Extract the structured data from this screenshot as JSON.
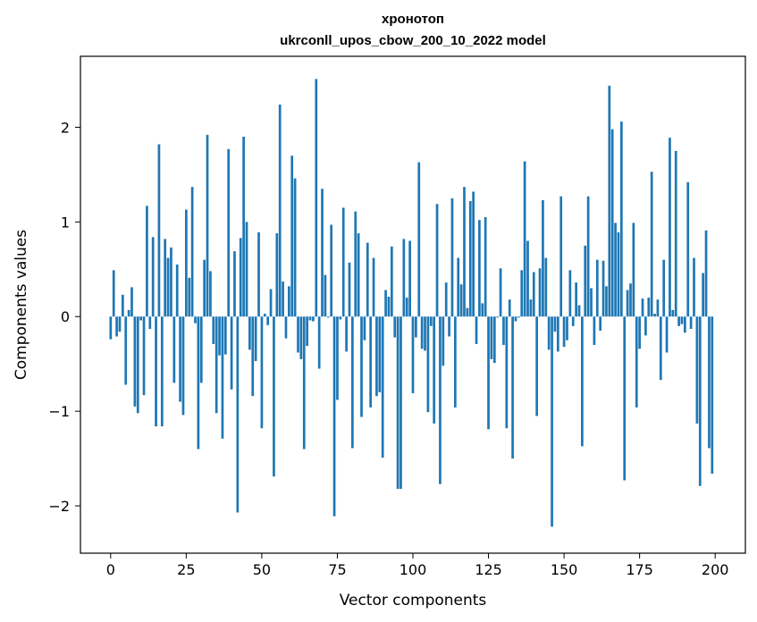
{
  "chart_data": {
    "type": "bar",
    "title": "хронотоп",
    "subtitle": "ukrconll_upos_cbow_200_10_2022 model",
    "xlabel": "Vector components",
    "ylabel": "Components values",
    "xlim": [
      -10,
      210
    ],
    "ylim": [
      -2.5,
      2.75
    ],
    "xticks": [
      0,
      25,
      50,
      75,
      100,
      125,
      150,
      175,
      200
    ],
    "yticks": [
      -2,
      -1,
      0,
      1,
      2
    ],
    "ytick_labels": [
      "−2",
      "−1",
      "0",
      "1",
      "2"
    ],
    "grid": false,
    "bar_color": "#1f77b4",
    "values": [
      -0.24,
      0.49,
      -0.21,
      -0.16,
      0.23,
      -0.72,
      0.07,
      0.31,
      -0.95,
      -1.02,
      -0.04,
      -0.83,
      1.17,
      -0.13,
      0.84,
      -1.16,
      1.82,
      -1.16,
      0.82,
      0.62,
      0.73,
      -0.7,
      0.55,
      -0.9,
      -1.04,
      1.13,
      0.41,
      1.37,
      -0.07,
      -1.4,
      -0.7,
      0.6,
      1.92,
      0.48,
      -0.29,
      -1.02,
      -0.41,
      -1.29,
      -0.4,
      1.77,
      -0.77,
      0.69,
      -2.07,
      0.83,
      1.9,
      1.0,
      -0.35,
      -0.84,
      -0.47,
      0.89,
      -1.18,
      0.03,
      -0.09,
      0.29,
      -1.69,
      0.88,
      2.24,
      0.37,
      -0.23,
      0.32,
      1.7,
      1.46,
      -0.38,
      -0.45,
      -1.4,
      -0.31,
      -0.04,
      -0.05,
      2.51,
      -0.55,
      1.35,
      0.44,
      -0.01,
      0.97,
      -2.11,
      -0.88,
      -0.03,
      1.15,
      -0.37,
      0.57,
      -1.39,
      1.11,
      0.88,
      -1.06,
      -0.25,
      0.78,
      -0.96,
      0.62,
      -0.84,
      -0.8,
      -1.49,
      0.28,
      0.21,
      0.74,
      -0.22,
      -1.82,
      -1.82,
      0.82,
      0.2,
      0.8,
      -0.81,
      -0.22,
      1.63,
      -0.34,
      -0.36,
      -1.01,
      -0.1,
      -1.13,
      1.19,
      -1.77,
      -0.52,
      0.36,
      -0.21,
      1.25,
      -0.96,
      0.62,
      0.34,
      1.37,
      0.09,
      1.22,
      1.32,
      -0.29,
      1.02,
      0.14,
      1.05,
      -1.19,
      -0.45,
      -0.49,
      -0.01,
      0.51,
      -0.3,
      -1.18,
      0.18,
      -1.5,
      -0.05,
      -0.01,
      0.49,
      1.64,
      0.8,
      0.18,
      0.47,
      -1.05,
      0.51,
      1.23,
      0.62,
      -0.35,
      -2.22,
      -0.16,
      -0.37,
      1.27,
      -0.32,
      -0.25,
      0.49,
      -0.1,
      0.36,
      0.12,
      -1.37,
      0.75,
      1.27,
      0.3,
      -0.3,
      0.6,
      -0.15,
      0.59,
      0.32,
      2.44,
      1.98,
      0.99,
      0.89,
      2.06,
      -1.73,
      0.28,
      0.35,
      0.99,
      -0.96,
      -0.34,
      0.19,
      -0.2,
      0.2,
      1.53,
      0.03,
      0.18,
      -0.67,
      0.6,
      -0.38,
      1.89,
      0.07,
      1.75,
      -0.1,
      -0.08,
      -0.17,
      1.42,
      -0.13,
      0.62,
      -1.13,
      -1.79,
      0.46,
      0.91,
      -1.39,
      -1.66
    ]
  }
}
